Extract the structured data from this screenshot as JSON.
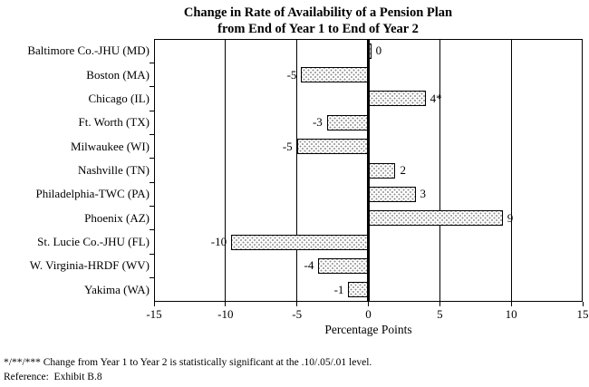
{
  "chart_data": {
    "type": "bar",
    "orientation": "horizontal",
    "title_line1": "Change in Rate of Availability of a Pension Plan",
    "title_line2": "from End of Year 1 to End of Year 2",
    "categories": [
      "Baltimore Co.-JHU (MD)",
      "Boston (MA)",
      "Chicago (IL)",
      "Ft. Worth (TX)",
      "Milwaukee (WI)",
      "Nashville (TN)",
      "Philadelphia-TWC (PA)",
      "Phoenix (AZ)",
      "St. Lucie Co.-JHU (FL)",
      "W. Virginia-HRDF (WV)",
      "Yakima (WA)"
    ],
    "values": [
      0,
      -5,
      4,
      -3,
      -5,
      2,
      3,
      9,
      -10,
      -4,
      -1
    ],
    "value_labels": [
      "0",
      "-5",
      "4*",
      "-3",
      "-5",
      "2",
      "3",
      "9",
      "-10",
      "-4",
      "-1"
    ],
    "drawn_values": [
      0.2,
      -4.7,
      4.0,
      -2.9,
      -5.0,
      1.9,
      3.3,
      9.4,
      -9.6,
      -3.5,
      -1.4
    ],
    "xlabel": "Percentage Points",
    "xlim": [
      -15,
      15
    ],
    "xticks": [
      -15,
      -10,
      -5,
      0,
      5,
      10,
      15
    ],
    "gridlines": [
      -10,
      -5,
      0,
      5,
      10
    ],
    "grid_on": true,
    "legend": "none",
    "bar_fill": "#ffffff",
    "bar_pattern_dot_color": "#8f8f8f",
    "bar_border_color": "#000000",
    "axis_color": "#000000",
    "text_color": "#000000",
    "background_color": "#ffffff"
  },
  "footnotes": {
    "significance": "*/**/*** Change from Year 1 to Year 2 is statistically significant at the .10/.05/.01 level.",
    "reference": "Reference:  Exhibit B.8"
  }
}
